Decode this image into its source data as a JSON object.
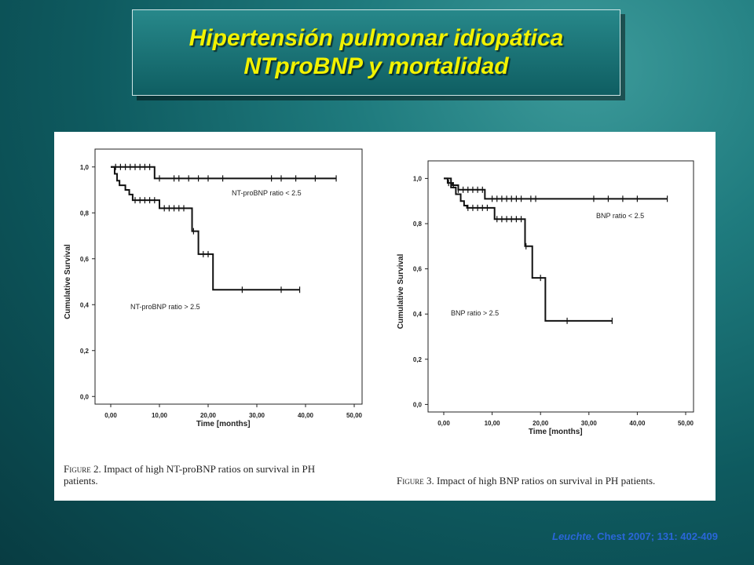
{
  "slide": {
    "title_line1": "Hipertensión pulmonar idiopática",
    "title_line2": "NTproBNP y mortalidad",
    "citation_author": "Leuchte",
    "citation_rest": ". Chest 2007; 131: 402-409"
  },
  "captions": {
    "fig2_label": "Figure 2.",
    "fig2_text_line1": "Impact of high NT-proBNP ratios on survival in PH",
    "fig2_text_line2": "patients.",
    "fig3_label": "Figure 3.",
    "fig3_text": "Impact of high BNP ratios on survival in PH patients."
  },
  "colors": {
    "title": "#f2f200",
    "citation": "#2a66d8",
    "curve": "#111111"
  },
  "chart_data": [
    {
      "type": "line",
      "step": true,
      "xlabel": "Time [months]",
      "ylabel": "Cumulative Survival",
      "xlim": [
        0,
        50
      ],
      "ylim": [
        0,
        1.0
      ],
      "x_ticks": [
        "0,00",
        "10,00",
        "20,00",
        "30,00",
        "40,00",
        "50,00"
      ],
      "y_ticks": [
        "0,0",
        "0,2",
        "0,4",
        "0,6",
        "0,8",
        "1,0"
      ],
      "series": [
        {
          "name": "NT-proBNP ratio < 2.5",
          "steps": [
            [
              0,
              1.0
            ],
            [
              9,
              0.95
            ],
            [
              46.3,
              0.95
            ]
          ],
          "censored": [
            1,
            2,
            3,
            4,
            5,
            6,
            7,
            8,
            10,
            13,
            14,
            16,
            18,
            20,
            23,
            33,
            35,
            38,
            42,
            46.3
          ]
        },
        {
          "name": "NT-proBNP ratio > 2.5",
          "steps": [
            [
              0,
              1.0
            ],
            [
              0.8,
              0.97
            ],
            [
              1.3,
              0.94
            ],
            [
              1.8,
              0.92
            ],
            [
              3.0,
              0.9
            ],
            [
              3.8,
              0.88
            ],
            [
              4.5,
              0.855
            ],
            [
              10.0,
              0.82
            ],
            [
              16.7,
              0.72
            ],
            [
              18.0,
              0.62
            ],
            [
              21.0,
              0.465
            ],
            [
              38.8,
              0.465
            ]
          ],
          "censored": [
            5,
            6,
            7,
            8,
            9,
            11,
            12,
            13,
            14,
            15,
            17,
            19,
            20,
            27,
            35,
            38.8
          ]
        }
      ]
    },
    {
      "type": "line",
      "step": true,
      "xlabel": "Time [months]",
      "ylabel": "Cumulative Survival",
      "xlim": [
        0,
        50
      ],
      "ylim": [
        0,
        1.0
      ],
      "x_ticks": [
        "0,00",
        "10,00",
        "20,00",
        "30,00",
        "40,00",
        "50,00"
      ],
      "y_ticks": [
        "0,0",
        "0,2",
        "0,4",
        "0,6",
        "0,8",
        "1,0"
      ],
      "series": [
        {
          "name": "BNP ratio < 2.5",
          "steps": [
            [
              0,
              1.0
            ],
            [
              0.8,
              0.98
            ],
            [
              1.8,
              0.97
            ],
            [
              3.0,
              0.95
            ],
            [
              8.5,
              0.91
            ],
            [
              46.2,
              0.91
            ]
          ],
          "censored": [
            1,
            2,
            3,
            4,
            5,
            6,
            7,
            8,
            10,
            11,
            12,
            13,
            14,
            15,
            16,
            18,
            19,
            31,
            34,
            37,
            40,
            46.2
          ]
        },
        {
          "name": "BNP ratio > 2.5",
          "steps": [
            [
              0,
              1.0
            ],
            [
              1.5,
              0.96
            ],
            [
              2.5,
              0.93
            ],
            [
              3.5,
              0.9
            ],
            [
              4.2,
              0.88
            ],
            [
              4.8,
              0.87
            ],
            [
              10.5,
              0.82
            ],
            [
              16.8,
              0.7
            ],
            [
              18.3,
              0.56
            ],
            [
              21.0,
              0.37
            ],
            [
              34.8,
              0.37
            ]
          ],
          "censored": [
            5,
            6,
            7,
            8,
            9,
            11,
            12,
            13,
            14,
            15,
            16,
            17,
            20,
            25.5,
            34.8
          ]
        }
      ]
    }
  ]
}
